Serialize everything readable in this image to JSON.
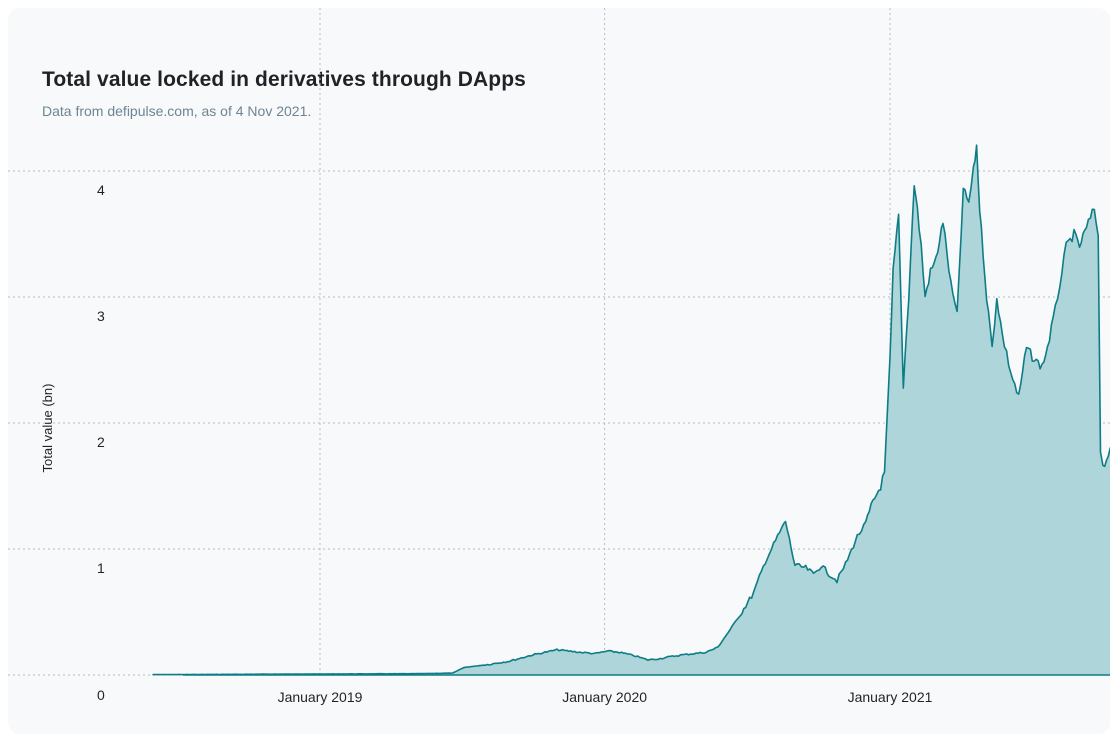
{
  "title": "Total value locked in derivatives through DApps",
  "subtitle": "Data from defipulse.com, as of 4 Nov 2021.",
  "chart_data": {
    "type": "area",
    "title": "Total value locked in derivatives through DApps",
    "subtitle": "Data from defipulse.com, as of 4 Nov 2021.",
    "xlabel": "",
    "ylabel": "Total value (bn)",
    "ylim": [
      0,
      4.2
    ],
    "xlim": [
      "2018-06-01",
      "2021-11-04"
    ],
    "grid": true,
    "yticks": [
      0,
      1,
      2,
      3,
      4
    ],
    "xticks": [
      {
        "label": "January 2019",
        "date": "2019-01-01"
      },
      {
        "label": "January 2020",
        "date": "2020-01-01"
      },
      {
        "label": "January 2021",
        "date": "2021-01-01"
      }
    ],
    "line_color": "#0e7c86",
    "fill_color": "#aed5d9",
    "series": [
      {
        "x": [
          "2018-06-01",
          "2018-09-01",
          "2019-01-01",
          "2019-05-01",
          "2019-06-20",
          "2019-07-05",
          "2019-08-01",
          "2019-09-01",
          "2019-10-01",
          "2019-11-01",
          "2019-12-01",
          "2019-12-20",
          "2020-01-05",
          "2020-01-20",
          "2020-02-10",
          "2020-02-25",
          "2020-03-12",
          "2020-03-20",
          "2020-04-10",
          "2020-04-25",
          "2020-05-10",
          "2020-05-25",
          "2020-06-10",
          "2020-06-25",
          "2020-07-10",
          "2020-07-25",
          "2020-08-10",
          "2020-08-20",
          "2020-09-01",
          "2020-09-15",
          "2020-09-25",
          "2020-10-05",
          "2020-10-15",
          "2020-10-25",
          "2020-11-05",
          "2020-11-20",
          "2020-12-01",
          "2020-12-10",
          "2020-12-20",
          "2020-12-25",
          "2021-01-01",
          "2021-01-05",
          "2021-01-12",
          "2021-01-18",
          "2021-01-25",
          "2021-02-01",
          "2021-02-05",
          "2021-02-10",
          "2021-02-15",
          "2021-02-22",
          "2021-03-01",
          "2021-03-10",
          "2021-03-20",
          "2021-03-28",
          "2021-04-05",
          "2021-04-12",
          "2021-04-18",
          "2021-04-22",
          "2021-04-26",
          "2021-05-05",
          "2021-05-12",
          "2021-05-18",
          "2021-05-25",
          "2021-06-05",
          "2021-06-15",
          "2021-06-25",
          "2021-07-05",
          "2021-07-15",
          "2021-07-22",
          "2021-08-01",
          "2021-08-15",
          "2021-08-25",
          "2021-09-01",
          "2021-09-10",
          "2021-09-20",
          "2021-09-25",
          "2021-09-28",
          "2021-10-01",
          "2021-10-08",
          "2021-10-15",
          "2021-10-25",
          "2021-11-04"
        ],
        "y": [
          0.003,
          0.005,
          0.008,
          0.01,
          0.015,
          0.06,
          0.08,
          0.11,
          0.16,
          0.2,
          0.18,
          0.17,
          0.19,
          0.18,
          0.15,
          0.12,
          0.13,
          0.14,
          0.16,
          0.17,
          0.18,
          0.22,
          0.36,
          0.5,
          0.65,
          0.9,
          1.1,
          1.22,
          0.87,
          0.85,
          0.8,
          0.87,
          0.8,
          0.75,
          0.88,
          1.1,
          1.2,
          1.37,
          1.5,
          1.6,
          2.5,
          3.2,
          3.65,
          2.3,
          3.0,
          3.9,
          3.7,
          3.4,
          3.0,
          3.2,
          3.3,
          3.6,
          3.1,
          2.85,
          3.85,
          3.75,
          4.0,
          4.2,
          3.7,
          3.0,
          2.6,
          3.0,
          2.7,
          2.4,
          2.2,
          2.6,
          2.5,
          2.45,
          2.6,
          2.9,
          3.4,
          3.5,
          3.4,
          3.55,
          3.7,
          3.5,
          1.8,
          1.65,
          1.75,
          1.8,
          2.0,
          2.05
        ]
      }
    ]
  }
}
